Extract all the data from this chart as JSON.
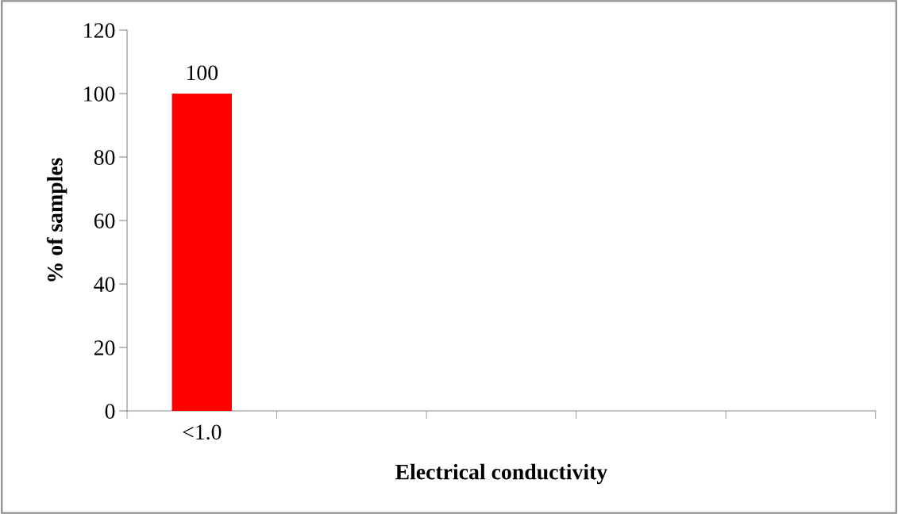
{
  "chart_data": {
    "type": "bar",
    "xlabel": "Electrical conductivity",
    "ylabel": "% of samples",
    "categories": [
      "<1.0",
      null,
      null,
      null,
      null
    ],
    "values": [
      100,
      null,
      null,
      null,
      null
    ],
    "value_labels": [
      "100",
      null,
      null,
      null,
      null
    ],
    "color": "#ff0000",
    "ylim": [
      0,
      120
    ],
    "yticks": [
      0,
      20,
      40,
      60,
      80,
      100,
      120
    ],
    "grid": false
  }
}
